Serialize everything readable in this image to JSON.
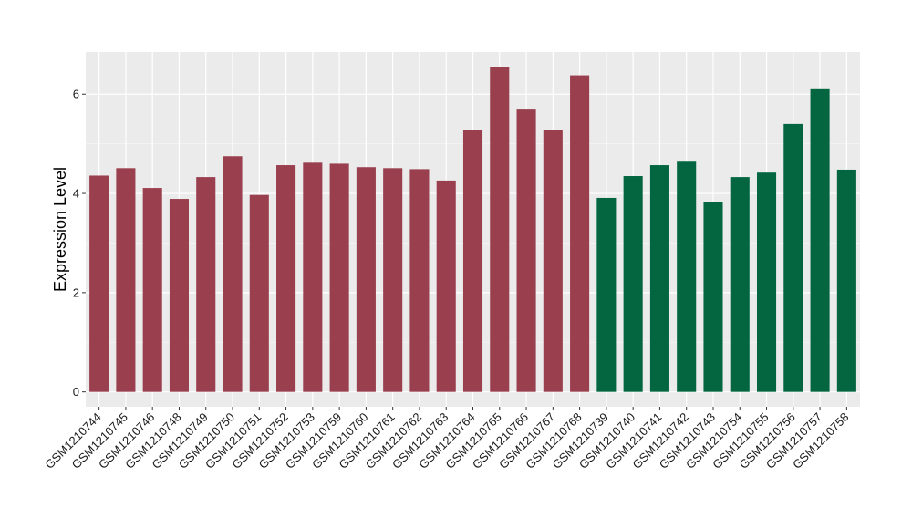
{
  "chart_data": {
    "type": "bar",
    "title": "",
    "xlabel": "",
    "ylabel": "Expression Level",
    "ylim": [
      -0.3,
      6.85
    ],
    "yticks": [
      0,
      2,
      4,
      6
    ],
    "grid": true,
    "legend": "none",
    "categories": [
      "GSM1210744",
      "GSM1210745",
      "GSM1210746",
      "GSM1210748",
      "GSM1210749",
      "GSM1210750",
      "GSM1210751",
      "GSM1210752",
      "GSM1210753",
      "GSM1210759",
      "GSM1210760",
      "GSM1210761",
      "GSM1210762",
      "GSM1210763",
      "GSM1210764",
      "GSM1210765",
      "GSM1210766",
      "GSM1210767",
      "GSM1210768",
      "GSM1210739",
      "GSM1210740",
      "GSM1210741",
      "GSM1210742",
      "GSM1210743",
      "GSM1210754",
      "GSM1210755",
      "GSM1210756",
      "GSM1210757",
      "GSM1210758"
    ],
    "values": [
      4.36,
      4.51,
      4.11,
      3.89,
      4.33,
      4.75,
      3.97,
      4.57,
      4.62,
      4.6,
      4.53,
      4.51,
      4.49,
      4.26,
      5.27,
      6.55,
      5.69,
      5.28,
      6.38,
      3.91,
      4.35,
      4.57,
      4.64,
      3.82,
      4.33,
      4.42,
      5.4,
      6.1,
      4.48
    ],
    "groups": [
      "red",
      "red",
      "red",
      "red",
      "red",
      "red",
      "red",
      "red",
      "red",
      "red",
      "red",
      "red",
      "red",
      "red",
      "red",
      "red",
      "red",
      "red",
      "red",
      "green",
      "green",
      "green",
      "green",
      "green",
      "green",
      "green",
      "green",
      "green",
      "green"
    ],
    "colors": {
      "red": "#9A3F4E",
      "green": "#036641",
      "panel": "#EBEBEB",
      "grid_major": "#FFFFFF",
      "grid_minor": "#F5F5F5"
    }
  }
}
